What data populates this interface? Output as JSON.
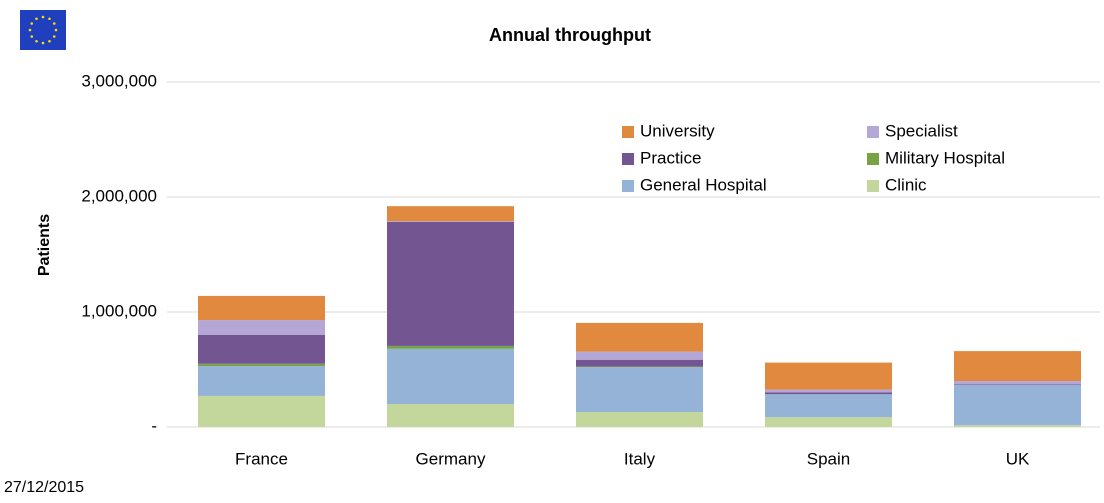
{
  "chart_data": {
    "type": "stacked_bar",
    "title": "Annual throughput",
    "y_label": "Patients",
    "footnote": "27/12/2015",
    "categories": [
      "France",
      "Germany",
      "Italy",
      "Spain",
      "UK"
    ],
    "series": [
      {
        "name": "Clinic",
        "color": "#c3d69b",
        "values": [
          270000,
          200000,
          130000,
          85000,
          15000
        ]
      },
      {
        "name": "General Hospital",
        "color": "#95b3d7",
        "values": [
          260000,
          480000,
          390000,
          200000,
          350000
        ]
      },
      {
        "name": "Military Hospital",
        "color": "#77a345",
        "values": [
          20000,
          25000,
          5000,
          0,
          0
        ]
      },
      {
        "name": "Practice",
        "color": "#735592",
        "values": [
          250000,
          1080000,
          60000,
          15000,
          5000
        ]
      },
      {
        "name": "Specialist",
        "color": "#b4a7d6",
        "values": [
          130000,
          5000,
          70000,
          25000,
          30000
        ]
      },
      {
        "name": "University",
        "color": "#e0893f",
        "values": [
          210000,
          130000,
          250000,
          235000,
          260000
        ]
      }
    ],
    "ylim": [
      0,
      3000000
    ],
    "yticks": [
      {
        "value": 0,
        "label": "-"
      },
      {
        "value": 1000000,
        "label": "1,000,000"
      },
      {
        "value": 2000000,
        "label": "2,000,000"
      },
      {
        "value": 3000000,
        "label": "3,000,000"
      }
    ],
    "grid": true
  }
}
